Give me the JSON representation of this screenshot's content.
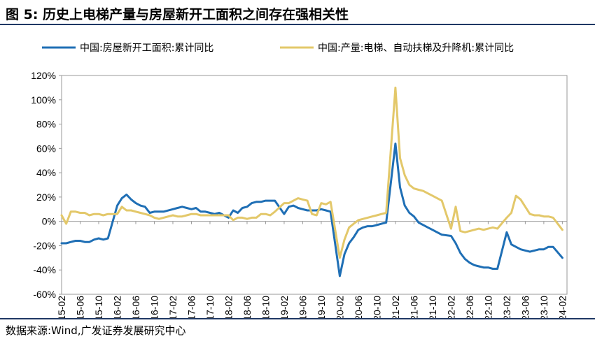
{
  "title": "图 5: 历史上电梯产量与房屋新开工面积之间存在强相关性",
  "source": "数据来源:Wind,广发证券发展研究中心",
  "colors": {
    "rule": "#1f3864",
    "series1": "#1f6fb5",
    "series2": "#e3c86a"
  },
  "chart_data": {
    "type": "line",
    "ylim": [
      -60,
      120
    ],
    "yticks": [
      -60,
      -40,
      -20,
      0,
      20,
      40,
      60,
      80,
      100,
      120
    ],
    "ytick_labels": [
      "-60%",
      "-40%",
      "-20%",
      "0%",
      "20%",
      "40%",
      "60%",
      "80%",
      "100%",
      "120%"
    ],
    "x_start": "2015-02",
    "x_end": "2024-03",
    "xtick_labels": [
      "2015-02",
      "2015-06",
      "2015-10",
      "2016-02",
      "2016-06",
      "2016-10",
      "2017-02",
      "2017-06",
      "2017-10",
      "2018-02",
      "2018-06",
      "2018-10",
      "2019-02",
      "2019-06",
      "2019-10",
      "2020-02",
      "2020-06",
      "2020-10",
      "2021-02",
      "2021-06",
      "2021-10",
      "2022-02",
      "2022-06",
      "2022-10",
      "2023-02",
      "2023-06",
      "2023-10",
      "2024-02"
    ],
    "legend_position": "top",
    "series": [
      {
        "name": "中国:房屋新开工面积:累计同比",
        "color": "#1f6fb5",
        "points": [
          [
            "2015-02",
            -18
          ],
          [
            "2015-03",
            -18
          ],
          [
            "2015-04",
            -17
          ],
          [
            "2015-05",
            -16
          ],
          [
            "2015-06",
            -16
          ],
          [
            "2015-07",
            -17
          ],
          [
            "2015-08",
            -17
          ],
          [
            "2015-09",
            -15
          ],
          [
            "2015-10",
            -14
          ],
          [
            "2015-11",
            -15
          ],
          [
            "2015-12",
            -14
          ],
          [
            "2016-02",
            13
          ],
          [
            "2016-03",
            19
          ],
          [
            "2016-04",
            22
          ],
          [
            "2016-05",
            18
          ],
          [
            "2016-06",
            15
          ],
          [
            "2016-07",
            13
          ],
          [
            "2016-08",
            12
          ],
          [
            "2016-09",
            7
          ],
          [
            "2016-10",
            8
          ],
          [
            "2016-11",
            8
          ],
          [
            "2016-12",
            8
          ],
          [
            "2017-02",
            10
          ],
          [
            "2017-03",
            11
          ],
          [
            "2017-04",
            12
          ],
          [
            "2017-05",
            11
          ],
          [
            "2017-06",
            10
          ],
          [
            "2017-07",
            11
          ],
          [
            "2017-08",
            8
          ],
          [
            "2017-09",
            8
          ],
          [
            "2017-10",
            7
          ],
          [
            "2017-11",
            6
          ],
          [
            "2017-12",
            7
          ],
          [
            "2018-02",
            3
          ],
          [
            "2018-03",
            9
          ],
          [
            "2018-04",
            7
          ],
          [
            "2018-05",
            11
          ],
          [
            "2018-06",
            12
          ],
          [
            "2018-07",
            15
          ],
          [
            "2018-08",
            16
          ],
          [
            "2018-09",
            16
          ],
          [
            "2018-10",
            17
          ],
          [
            "2018-11",
            17
          ],
          [
            "2018-12",
            17
          ],
          [
            "2019-02",
            6
          ],
          [
            "2019-03",
            12
          ],
          [
            "2019-04",
            13
          ],
          [
            "2019-05",
            11
          ],
          [
            "2019-06",
            10
          ],
          [
            "2019-07",
            9
          ],
          [
            "2019-08",
            9
          ],
          [
            "2019-09",
            9
          ],
          [
            "2019-10",
            10
          ],
          [
            "2019-11",
            9
          ],
          [
            "2019-12",
            8
          ],
          [
            "2020-02",
            -45
          ],
          [
            "2020-03",
            -27
          ],
          [
            "2020-04",
            -18
          ],
          [
            "2020-05",
            -13
          ],
          [
            "2020-06",
            -7
          ],
          [
            "2020-07",
            -5
          ],
          [
            "2020-08",
            -4
          ],
          [
            "2020-09",
            -4
          ],
          [
            "2020-10",
            -3
          ],
          [
            "2020-11",
            -2
          ],
          [
            "2020-12",
            -1
          ],
          [
            "2021-02",
            64
          ],
          [
            "2021-03",
            28
          ],
          [
            "2021-04",
            13
          ],
          [
            "2021-05",
            7
          ],
          [
            "2021-06",
            4
          ],
          [
            "2021-07",
            -1
          ],
          [
            "2021-08",
            -3
          ],
          [
            "2021-09",
            -5
          ],
          [
            "2021-10",
            -7
          ],
          [
            "2021-11",
            -9
          ],
          [
            "2021-12",
            -11
          ],
          [
            "2022-02",
            -12
          ],
          [
            "2022-03",
            -18
          ],
          [
            "2022-04",
            -26
          ],
          [
            "2022-05",
            -31
          ],
          [
            "2022-06",
            -34
          ],
          [
            "2022-07",
            -36
          ],
          [
            "2022-08",
            -37
          ],
          [
            "2022-09",
            -38
          ],
          [
            "2022-10",
            -38
          ],
          [
            "2022-11",
            -39
          ],
          [
            "2022-12",
            -39
          ],
          [
            "2023-02",
            -9
          ],
          [
            "2023-03",
            -19
          ],
          [
            "2023-04",
            -21
          ],
          [
            "2023-05",
            -23
          ],
          [
            "2023-06",
            -24
          ],
          [
            "2023-07",
            -25
          ],
          [
            "2023-08",
            -24
          ],
          [
            "2023-09",
            -23
          ],
          [
            "2023-10",
            -23
          ],
          [
            "2023-11",
            -21
          ],
          [
            "2023-12",
            -21
          ],
          [
            "2024-02",
            -30
          ]
        ]
      },
      {
        "name": "中国:产量:电梯、自动扶梯及升降机:累计同比",
        "color": "#e3c86a",
        "points": [
          [
            "2015-02",
            5
          ],
          [
            "2015-03",
            -2
          ],
          [
            "2015-04",
            8
          ],
          [
            "2015-05",
            8
          ],
          [
            "2015-06",
            7
          ],
          [
            "2015-07",
            7
          ],
          [
            "2015-08",
            5
          ],
          [
            "2015-09",
            6
          ],
          [
            "2015-10",
            6
          ],
          [
            "2015-11",
            5
          ],
          [
            "2015-12",
            6
          ],
          [
            "2016-02",
            6
          ],
          [
            "2016-03",
            12
          ],
          [
            "2016-04",
            9
          ],
          [
            "2016-05",
            9
          ],
          [
            "2016-06",
            8
          ],
          [
            "2016-07",
            7
          ],
          [
            "2016-08",
            6
          ],
          [
            "2016-09",
            5
          ],
          [
            "2016-10",
            3
          ],
          [
            "2016-11",
            2
          ],
          [
            "2016-12",
            3
          ],
          [
            "2017-02",
            5
          ],
          [
            "2017-03",
            4
          ],
          [
            "2017-04",
            4
          ],
          [
            "2017-05",
            5
          ],
          [
            "2017-06",
            6
          ],
          [
            "2017-07",
            6
          ],
          [
            "2017-08",
            5
          ],
          [
            "2017-09",
            5
          ],
          [
            "2017-10",
            5
          ],
          [
            "2017-11",
            5
          ],
          [
            "2017-12",
            5
          ],
          [
            "2018-02",
            5
          ],
          [
            "2018-03",
            1
          ],
          [
            "2018-04",
            3
          ],
          [
            "2018-05",
            3
          ],
          [
            "2018-06",
            2
          ],
          [
            "2018-07",
            3
          ],
          [
            "2018-08",
            3
          ],
          [
            "2018-09",
            6
          ],
          [
            "2018-10",
            6
          ],
          [
            "2018-11",
            5
          ],
          [
            "2018-12",
            8
          ],
          [
            "2019-02",
            15
          ],
          [
            "2019-03",
            15
          ],
          [
            "2019-04",
            17
          ],
          [
            "2019-05",
            19
          ],
          [
            "2019-06",
            18
          ],
          [
            "2019-07",
            17
          ],
          [
            "2019-08",
            6
          ],
          [
            "2019-09",
            5
          ],
          [
            "2019-10",
            15
          ],
          [
            "2019-11",
            14
          ],
          [
            "2019-12",
            16
          ],
          [
            "2020-02",
            -30
          ],
          [
            "2020-03",
            -15
          ],
          [
            "2020-04",
            -5
          ],
          [
            "2020-05",
            -2
          ],
          [
            "2020-06",
            1
          ],
          [
            "2020-07",
            2
          ],
          [
            "2020-08",
            3
          ],
          [
            "2020-09",
            4
          ],
          [
            "2020-10",
            5
          ],
          [
            "2020-11",
            6
          ],
          [
            "2020-12",
            7
          ],
          [
            "2021-02",
            110
          ],
          [
            "2021-03",
            52
          ],
          [
            "2021-04",
            38
          ],
          [
            "2021-05",
            30
          ],
          [
            "2021-06",
            27
          ],
          [
            "2021-07",
            26
          ],
          [
            "2021-08",
            25
          ],
          [
            "2021-09",
            23
          ],
          [
            "2021-10",
            21
          ],
          [
            "2021-11",
            19
          ],
          [
            "2021-12",
            17
          ],
          [
            "2022-02",
            -6
          ],
          [
            "2022-03",
            12
          ],
          [
            "2022-04",
            -8
          ],
          [
            "2022-05",
            -9
          ],
          [
            "2022-06",
            -8
          ],
          [
            "2022-07",
            -7
          ],
          [
            "2022-08",
            -6
          ],
          [
            "2022-09",
            -7
          ],
          [
            "2022-10",
            -6
          ],
          [
            "2022-11",
            -5
          ],
          [
            "2022-12",
            -6
          ],
          [
            "2023-02",
            3
          ],
          [
            "2023-03",
            7
          ],
          [
            "2023-04",
            21
          ],
          [
            "2023-05",
            18
          ],
          [
            "2023-06",
            12
          ],
          [
            "2023-07",
            6
          ],
          [
            "2023-08",
            5
          ],
          [
            "2023-09",
            5
          ],
          [
            "2023-10",
            4
          ],
          [
            "2023-11",
            4
          ],
          [
            "2023-12",
            3
          ],
          [
            "2024-02",
            -7
          ]
        ]
      }
    ]
  }
}
